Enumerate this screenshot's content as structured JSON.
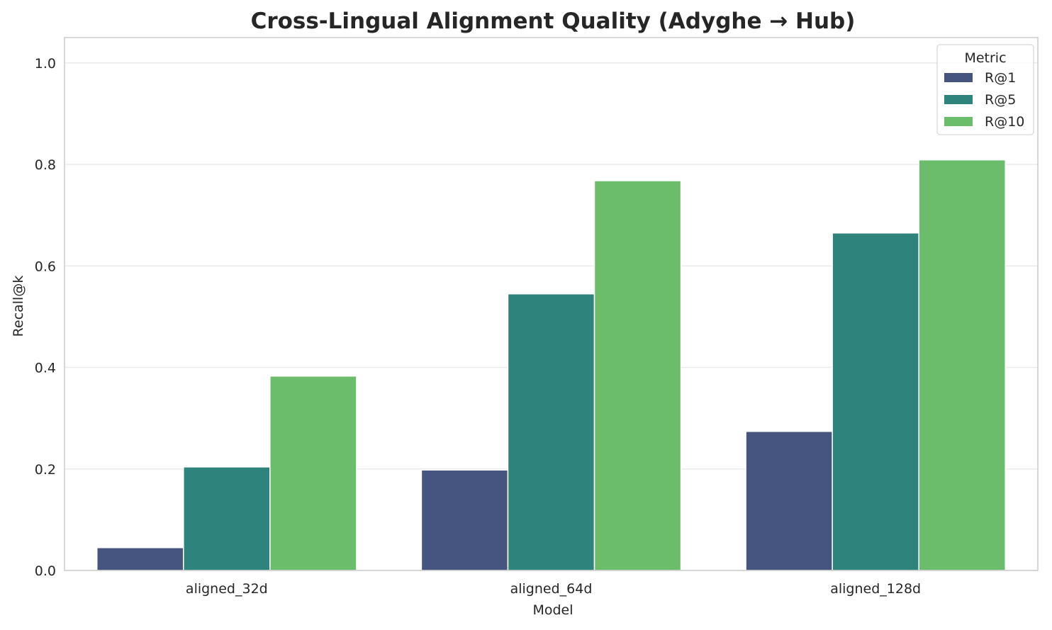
{
  "chart_data": {
    "type": "bar",
    "title": "Cross-Lingual Alignment Quality (Adyghe → Hub)",
    "xlabel": "Model",
    "ylabel": "Recall@k",
    "ylim": [
      0,
      1.05
    ],
    "yticks": [
      0.0,
      0.2,
      0.4,
      0.6,
      0.8,
      1.0
    ],
    "ytick_labels": [
      "0.0",
      "0.2",
      "0.4",
      "0.6",
      "0.8",
      "1.0"
    ],
    "grid": true,
    "legend_title": "Metric",
    "legend_position": "top-right",
    "categories": [
      "aligned_32d",
      "aligned_64d",
      "aligned_128d"
    ],
    "series": [
      {
        "name": "R@1",
        "color": "#46557f",
        "values": [
          0.045,
          0.198,
          0.274
        ]
      },
      {
        "name": "R@5",
        "color": "#2e837c",
        "values": [
          0.204,
          0.545,
          0.665
        ]
      },
      {
        "name": "R@10",
        "color": "#6bbd6c",
        "values": [
          0.383,
          0.768,
          0.809
        ]
      }
    ]
  }
}
